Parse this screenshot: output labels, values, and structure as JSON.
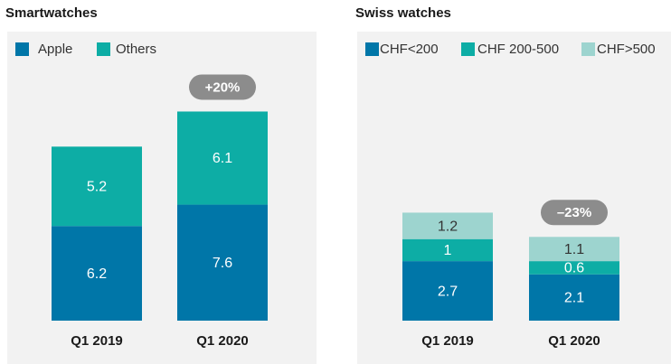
{
  "chart_data": [
    {
      "type": "bar",
      "stacked": true,
      "title": "Smartwatches",
      "categories": [
        "Q1 2019",
        "Q1 2020"
      ],
      "series": [
        {
          "name": "Apple",
          "color": "#0076a8",
          "values": [
            6.2,
            7.6
          ]
        },
        {
          "name": "Others",
          "color": "#0dada5",
          "values": [
            5.2,
            6.1
          ]
        }
      ],
      "annotation": "+20%"
    },
    {
      "type": "bar",
      "stacked": true,
      "title": "Swiss watches",
      "categories": [
        "Q1 2019",
        "Q1 2020"
      ],
      "series": [
        {
          "name": "CHF<200",
          "color": "#0076a8",
          "values": [
            2.7,
            2.1
          ]
        },
        {
          "name": "CHF 200-500",
          "color": "#0dada5",
          "values": [
            1,
            0.6
          ]
        },
        {
          "name": "CHF>500",
          "color": "#9dd4cf",
          "values": [
            1.2,
            1.1
          ]
        }
      ],
      "annotation": "–23%"
    }
  ]
}
